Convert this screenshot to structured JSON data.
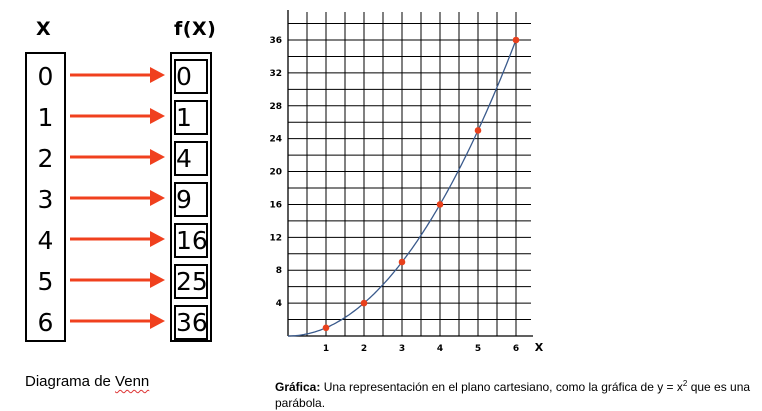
{
  "mapping": {
    "domain_header": "X",
    "range_header": "f(X)",
    "pairs": [
      {
        "x": "0",
        "fx": "0"
      },
      {
        "x": "1",
        "fx": "1"
      },
      {
        "x": "2",
        "fx": "4"
      },
      {
        "x": "3",
        "fx": "9"
      },
      {
        "x": "4",
        "fx": "16"
      },
      {
        "x": "5",
        "fx": "25"
      },
      {
        "x": "6",
        "fx": "36"
      }
    ],
    "arrow_color": "#f0401e"
  },
  "chart_data": {
    "type": "line",
    "xlabel": "X",
    "ylabel": "",
    "x_ticks": [
      "1",
      "2",
      "3",
      "4",
      "5",
      "6"
    ],
    "y_ticks": [
      "4",
      "8",
      "12",
      "16",
      "20",
      "24",
      "28",
      "32",
      "36"
    ],
    "xlim": [
      0,
      6
    ],
    "ylim": [
      0,
      36
    ],
    "grid": true,
    "series": [
      {
        "x": [
          0,
          1,
          2,
          3,
          4,
          5,
          6
        ],
        "values": [
          0,
          1,
          4,
          9,
          16,
          25,
          36
        ],
        "line_color": "#3a5a8c",
        "marker_color": "#e8401c"
      }
    ]
  },
  "captions": {
    "venn_prefix": "Diagrama de ",
    "venn_underlined": "Venn",
    "graph_bold": "Gráfica:",
    "graph_text_1": " Una representación en el plano cartesiano, como la gráfica de y = x",
    "graph_superscript": "2",
    "graph_text_2": "  que es una parábola."
  }
}
